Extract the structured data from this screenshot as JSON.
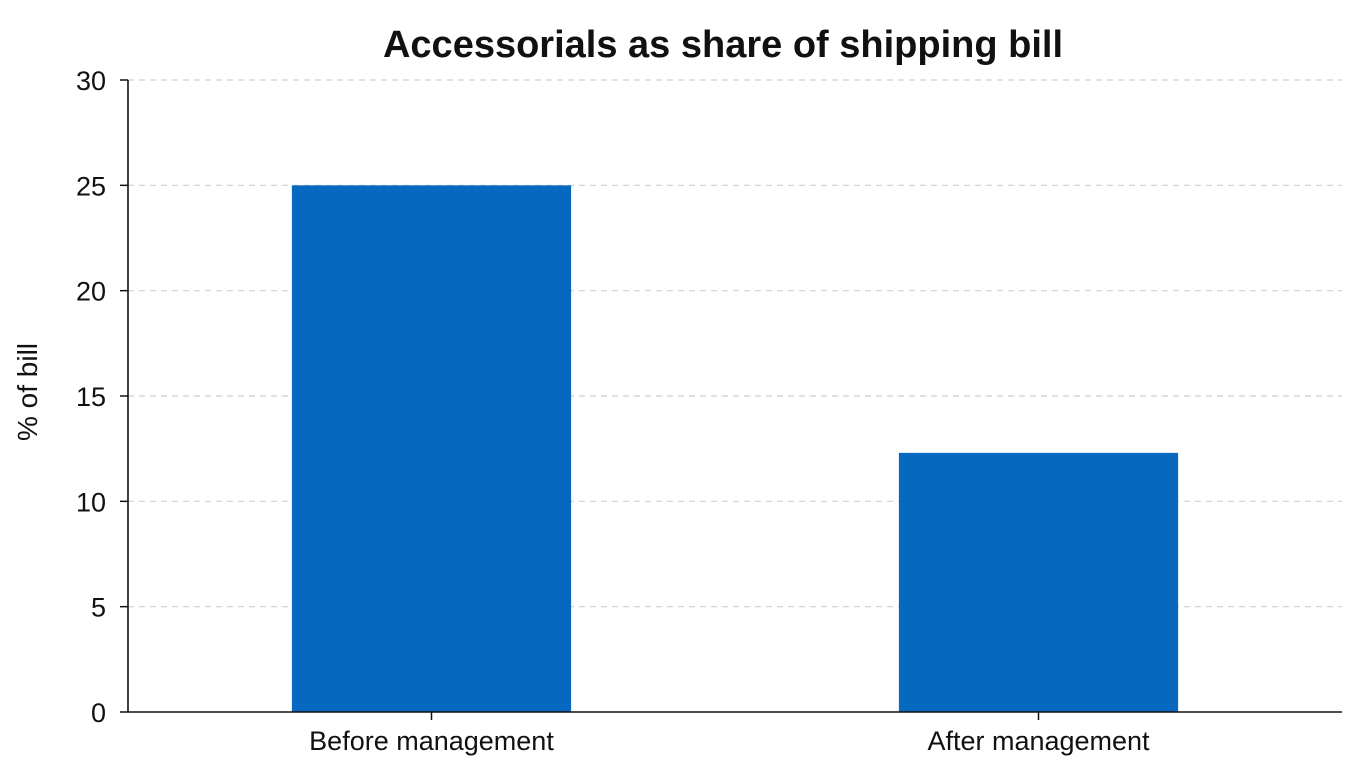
{
  "chart_data": {
    "type": "bar",
    "title": "Accessorials as share of shipping bill",
    "xlabel": "",
    "ylabel": "% of bill",
    "categories": [
      "Before management",
      "After management"
    ],
    "values": [
      25,
      12.3
    ],
    "ylim": [
      0,
      30
    ],
    "yticks": [
      0,
      5,
      10,
      15,
      20,
      25,
      30
    ],
    "grid": true,
    "grid_axis": "y",
    "legend": "none",
    "bar_color": "#0669BF"
  }
}
